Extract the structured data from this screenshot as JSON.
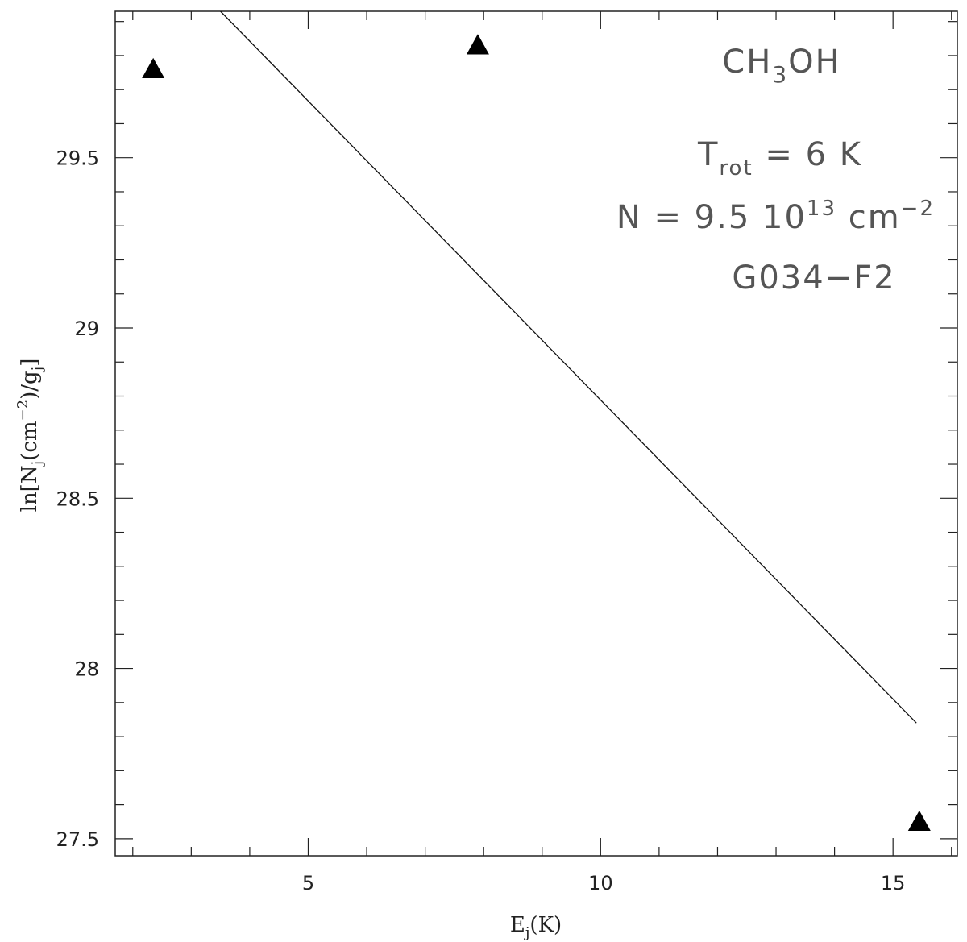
{
  "chart_data": {
    "type": "scatter",
    "title": "",
    "xlabel": {
      "base": "E",
      "sub": "j",
      "rest": "(K)"
    },
    "ylabel": {
      "p1": "ln[N",
      "sub1": "j",
      "p2": "(cm",
      "sup": "−2",
      "p3": ")/g",
      "sub2": "j",
      "p4": "]"
    },
    "xlim": [
      1.7,
      16.1
    ],
    "ylim": [
      27.45,
      29.93
    ],
    "x_ticks": [
      5,
      10,
      15
    ],
    "x_tick_labels": [
      "5",
      "10",
      "15"
    ],
    "x_minor_step": 1,
    "y_ticks": [
      27.5,
      28,
      28.5,
      29,
      29.5
    ],
    "y_tick_labels": [
      "27.5",
      "28",
      "28.5",
      "29",
      "29.5"
    ],
    "y_minor_step": 0.1,
    "points": [
      {
        "x": 2.35,
        "y": 29.76
      },
      {
        "x": 7.9,
        "y": 29.83
      },
      {
        "x": 15.45,
        "y": 27.55
      }
    ],
    "fit_line": {
      "x": [
        3.5,
        15.4
      ],
      "y": [
        29.93,
        27.84
      ]
    },
    "annotations": {
      "molecule": {
        "p1": "CH",
        "sub": "3",
        "p2": "OH"
      },
      "trot": {
        "p1": "T",
        "sub": "rot",
        "p2": " = 6 K"
      },
      "ncol": {
        "p1": "N = 9.5 10",
        "sup": "13",
        "p2": " cm",
        "sup2": "−2"
      },
      "source": "G034−F2"
    },
    "grid": false,
    "legend": "none"
  }
}
